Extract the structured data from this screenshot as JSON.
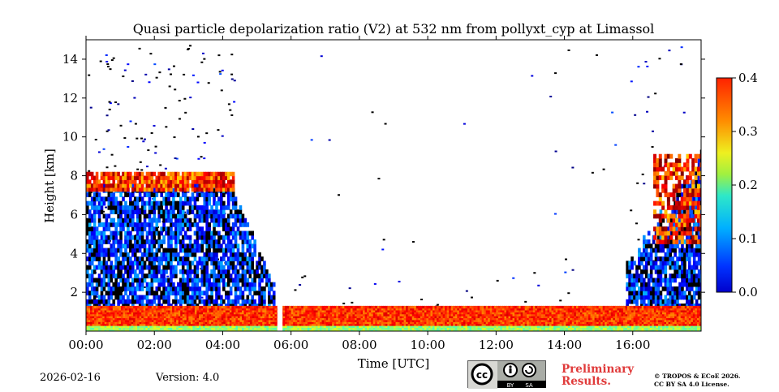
{
  "chart_data": {
    "type": "heatmap",
    "title": "Quasi particle depolarization ratio (V2) at 532 nm from pollyxt_cyp at Limassol",
    "xlabel": "Time [UTC]",
    "ylabel": "Height [km]",
    "x_ticks": [
      "00:00",
      "02:00",
      "04:00",
      "06:00",
      "08:00",
      "10:00",
      "12:00",
      "14:00",
      "16:00"
    ],
    "x_tick_hours": [
      0,
      2,
      4,
      6,
      8,
      10,
      12,
      14,
      16
    ],
    "xlim_hours": [
      0,
      18
    ],
    "y_ticks": [
      "2",
      "4",
      "6",
      "8",
      "10",
      "12",
      "14"
    ],
    "y_tick_values": [
      2,
      4,
      6,
      8,
      10,
      12,
      14
    ],
    "ylim_km": [
      0,
      15
    ],
    "colorbar": {
      "ticks": [
        "0.0",
        "0.1",
        "0.2",
        "0.3",
        "0.4"
      ],
      "tick_values": [
        0.0,
        0.1,
        0.2,
        0.3,
        0.4
      ],
      "range": [
        0.0,
        0.4
      ],
      "colormap": "jet"
    },
    "features": [
      {
        "name": "near-surface layer",
        "time_hours": [
          0,
          18
        ],
        "height_km": [
          0,
          1.2
        ],
        "value": 0.33
      },
      {
        "name": "elevated layer",
        "time_hours": [
          0,
          4.3
        ],
        "height_km": [
          7.2,
          8.2
        ],
        "value": 0.33
      },
      {
        "name": "lower dust/aerosol layer",
        "time_hours": [
          0,
          5.5
        ],
        "height_km": [
          1.2,
          7.5
        ],
        "value": 0.05
      },
      {
        "name": "afternoon cloud",
        "time_hours": [
          15.8,
          18
        ],
        "height_km": [
          1.2,
          9.5
        ],
        "value": 0.05
      },
      {
        "name": "afternoon depolarizing layer",
        "time_hours": [
          16.6,
          18
        ],
        "height_km": [
          4.5,
          9.0
        ],
        "value": 0.34
      }
    ],
    "data_gap_hours": [
      5.6,
      5.75
    ]
  },
  "footer": {
    "date": "2026-02-16",
    "version": "Version: 4.0",
    "preliminary_line1": "Preliminary",
    "preliminary_line2": "Results.",
    "license_line1": "© TROPOS & ECoE 2026.",
    "license_line2": "CC BY SA 4.0 License.",
    "cc_by": "BY",
    "cc_sa": "SA"
  }
}
